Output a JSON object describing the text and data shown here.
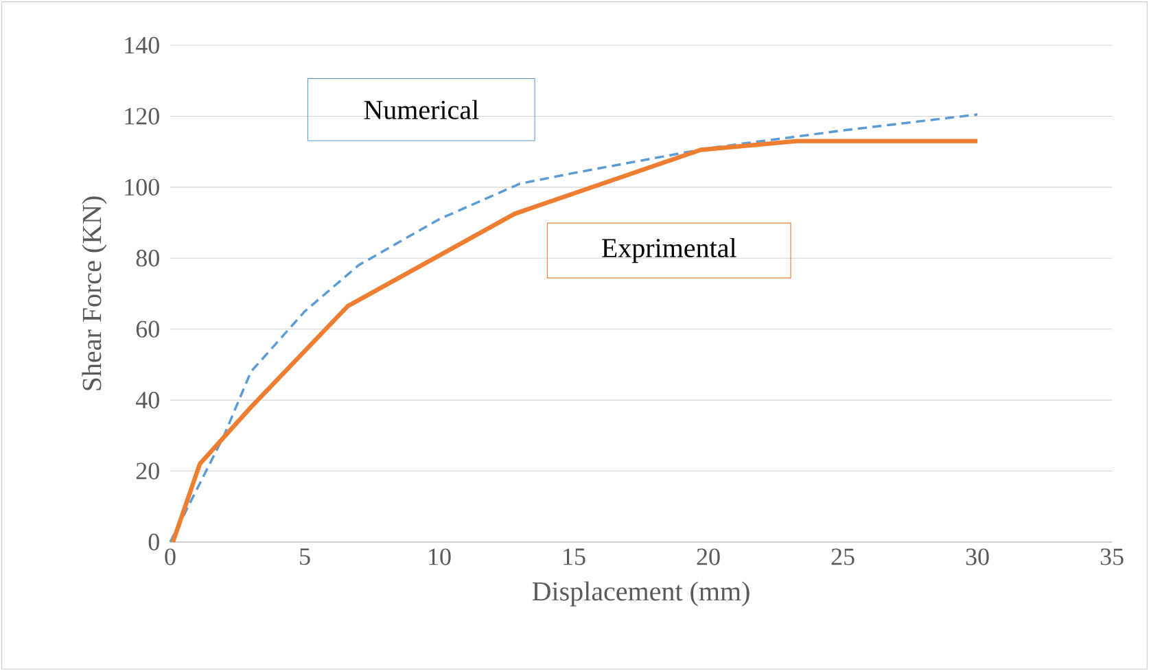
{
  "chart_data": {
    "type": "line",
    "xlabel": "Displacement (mm)",
    "ylabel": "Shear Force (KN)",
    "xlim": [
      0,
      35
    ],
    "xticks": [
      0,
      5,
      10,
      15,
      20,
      25,
      30,
      35
    ],
    "ylim": [
      0,
      140
    ],
    "yticks": [
      0,
      20,
      40,
      60,
      80,
      100,
      120,
      140
    ],
    "grid": "y",
    "series": [
      {
        "name": "Numerical",
        "color": "#5b9bd5",
        "line_style": "dashed",
        "x": [
          0,
          1,
          2,
          3,
          5,
          7,
          10,
          13,
          15,
          20,
          25,
          30
        ],
        "values": [
          0,
          15,
          30,
          48,
          65,
          78,
          91,
          101,
          104,
          111,
          116,
          120.5
        ]
      },
      {
        "name": "Exprimental",
        "color": "#ed7d31",
        "line_style": "solid",
        "x": [
          0.1,
          1.1,
          3,
          6.6,
          12.8,
          19.7,
          23.3,
          30
        ],
        "values": [
          0,
          22,
          38,
          66.5,
          92.5,
          110.5,
          113,
          113
        ]
      }
    ]
  }
}
